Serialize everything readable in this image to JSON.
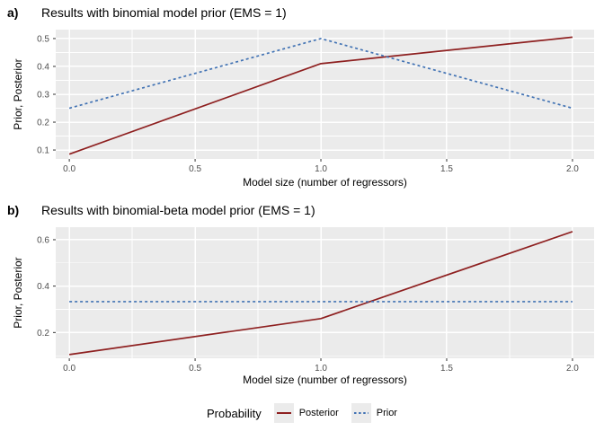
{
  "colors": {
    "posterior": "#8E2020",
    "prior": "#4273B4",
    "panel_bg": "#EBEBEB",
    "grid_major": "#FFFFFF",
    "grid_minor": "#FFFFFF",
    "tick_mark": "#333333",
    "tick_label": "#4D4D4D"
  },
  "legend": {
    "title": "Probability",
    "items": [
      {
        "label": "Posterior",
        "style": "solid"
      },
      {
        "label": "Prior",
        "style": "dashed"
      }
    ]
  },
  "chart_data": [
    {
      "id": "a",
      "type": "line",
      "tag": "a)",
      "title": "Results with binomial model prior (EMS = 1)",
      "xlabel": "Model size (number of regressors)",
      "ylabel": "Prior, Posterior",
      "x": [
        0,
        1,
        2
      ],
      "series": [
        {
          "name": "Posterior",
          "style": "solid",
          "values": [
            0.085,
            0.41,
            0.505
          ]
        },
        {
          "name": "Prior",
          "style": "dashed",
          "values": [
            0.25,
            0.5,
            0.25
          ]
        }
      ],
      "xticks": [
        0.0,
        0.5,
        1.0,
        1.5,
        2.0
      ],
      "yticks": [
        0.1,
        0.2,
        0.3,
        0.4,
        0.5
      ],
      "x_minor": [
        0.25,
        0.75,
        1.25,
        1.75
      ],
      "y_minor": [
        0.15,
        0.25,
        0.35,
        0.45
      ],
      "xlim": [
        -0.054,
        2.086
      ],
      "ylim": [
        0.068,
        0.532
      ],
      "grid": true,
      "legend_position": "bottom"
    },
    {
      "id": "b",
      "type": "line",
      "tag": "b)",
      "title": "Results with binomial-beta model prior (EMS = 1)",
      "xlabel": "Model size (number of regressors)",
      "ylabel": "Prior, Posterior",
      "x": [
        0,
        1,
        2
      ],
      "series": [
        {
          "name": "Posterior",
          "style": "solid",
          "values": [
            0.105,
            0.26,
            0.635
          ]
        },
        {
          "name": "Prior",
          "style": "dashed",
          "values": [
            0.333,
            0.333,
            0.333
          ]
        }
      ],
      "xticks": [
        0.0,
        0.5,
        1.0,
        1.5,
        2.0
      ],
      "yticks": [
        0.2,
        0.4,
        0.6
      ],
      "x_minor": [
        0.25,
        0.75,
        1.25,
        1.75
      ],
      "y_minor": [
        0.1,
        0.3,
        0.5
      ],
      "xlim": [
        -0.054,
        2.086
      ],
      "ylim": [
        0.089,
        0.654
      ],
      "grid": true,
      "legend_position": "bottom"
    }
  ]
}
